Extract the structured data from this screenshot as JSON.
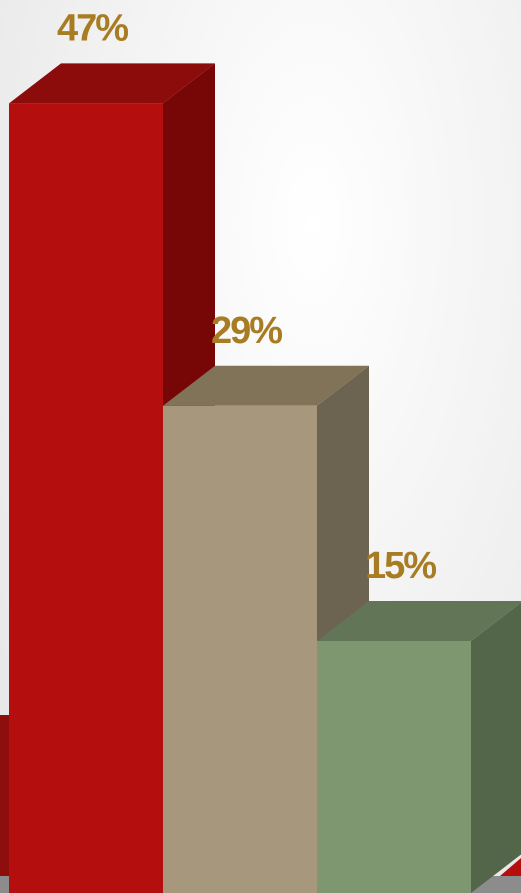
{
  "chart_data": {
    "type": "bar",
    "style": "3d-column",
    "title": "",
    "xlabel": "",
    "ylabel": "",
    "ylim": [
      0,
      50
    ],
    "grid": false,
    "legend": "none",
    "categories": [
      "",
      "",
      ""
    ],
    "values": [
      47,
      29,
      15
    ],
    "value_labels": [
      "47%",
      "29%",
      "15%"
    ],
    "colors": {
      "bar_front": [
        "#b50e0e",
        "#a7977c",
        "#7f9771"
      ],
      "bar_top": [
        "#8c0c0c",
        "#807358",
        "#627556"
      ],
      "bar_side": [
        "#770606",
        "#6c6450",
        "#53664a"
      ],
      "label": "#a87c22",
      "floor": "#8c8c8c",
      "background": "#f2f2f2"
    }
  }
}
